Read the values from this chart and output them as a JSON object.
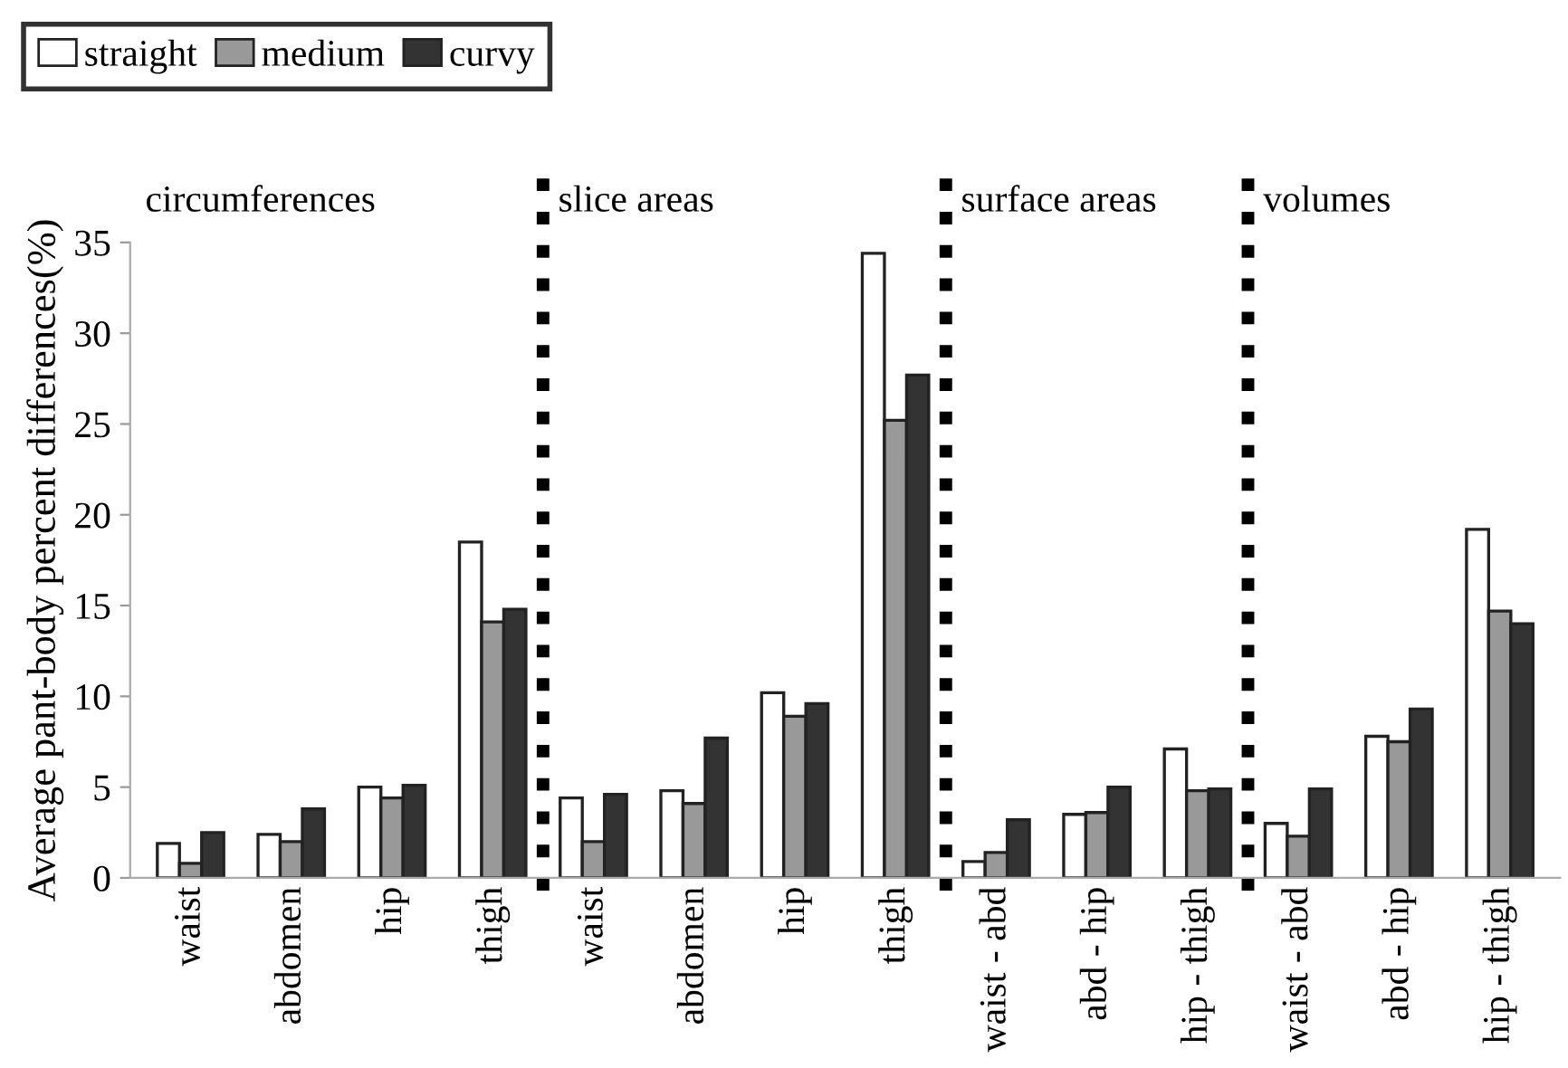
{
  "chart_data": {
    "type": "bar",
    "ylabel": "Average pant-body percent differences(%)",
    "categories": [
      "waist",
      "abdomen",
      "hip",
      "thigh",
      "waist",
      "abdomen",
      "hip",
      "thigh",
      "waist - abd",
      "abd - hip",
      "hip - thigh",
      "waist - abd",
      "abd - hip",
      "hip - thigh"
    ],
    "series": [
      {
        "name": "straight",
        "color": "#ffffff",
        "values": [
          1.9,
          2.4,
          5.0,
          18.5,
          4.4,
          4.8,
          10.2,
          34.4,
          0.9,
          3.5,
          7.1,
          3.0,
          7.8,
          19.2
        ]
      },
      {
        "name": "medium",
        "color": "#999999",
        "values": [
          0.8,
          2.0,
          4.4,
          14.1,
          2.0,
          4.1,
          8.9,
          25.2,
          1.4,
          3.6,
          4.8,
          2.3,
          7.5,
          14.7
        ]
      },
      {
        "name": "curvy",
        "color": "#333333",
        "values": [
          2.5,
          3.8,
          5.1,
          14.8,
          4.6,
          7.7,
          9.6,
          27.7,
          3.2,
          5.0,
          4.9,
          4.9,
          9.3,
          14.0
        ]
      }
    ],
    "annotations": [
      "circumferences",
      "slice areas",
      "surface areas",
      "volumes"
    ],
    "ylim": [
      0,
      35
    ],
    "yticks": [
      0,
      5,
      10,
      15,
      20,
      25,
      30,
      35
    ],
    "grid": false,
    "legend": "top left"
  }
}
